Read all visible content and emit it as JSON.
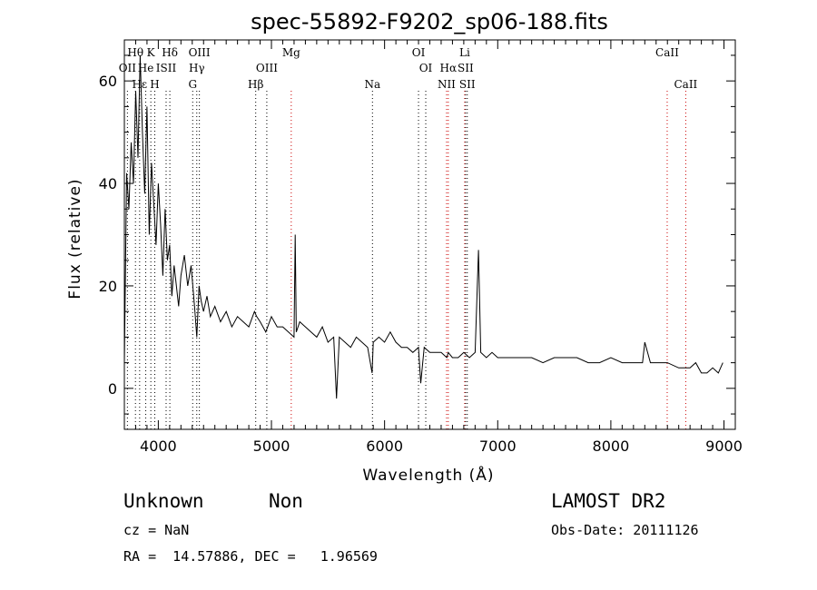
{
  "chart_data": {
    "type": "line",
    "title": "spec-55892-F9202_sp06-188.fits",
    "xlabel": "Wavelength (Å)",
    "ylabel": "Flux (relative)",
    "xlim": [
      3700,
      9100
    ],
    "ylim": [
      -8,
      68
    ],
    "xticks": [
      4000,
      5000,
      6000,
      7000,
      8000,
      9000
    ],
    "yticks": [
      0,
      20,
      40,
      60
    ],
    "grid": false,
    "series": [
      {
        "x": [
          3700,
          3720,
          3740,
          3760,
          3780,
          3800,
          3820,
          3840,
          3860,
          3880,
          3900,
          3920,
          3940,
          3960,
          3980,
          4000,
          4020,
          4040,
          4060,
          4080,
          4100,
          4120,
          4140,
          4160,
          4180,
          4200,
          4230,
          4260,
          4290,
          4320,
          4340,
          4360,
          4380,
          4400,
          4430,
          4460,
          4500,
          4550,
          4600,
          4650,
          4700,
          4750,
          4800,
          4850,
          4870,
          4900,
          4950,
          5000,
          5050,
          5100,
          5150,
          5200,
          5210,
          5220,
          5250,
          5300,
          5350,
          5400,
          5450,
          5500,
          5550,
          5575,
          5600,
          5650,
          5700,
          5750,
          5800,
          5850,
          5890,
          5900,
          5950,
          6000,
          6050,
          6100,
          6150,
          6200,
          6250,
          6300,
          6320,
          6350,
          6400,
          6450,
          6500,
          6550,
          6563,
          6600,
          6650,
          6700,
          6750,
          6800,
          6830,
          6850,
          6900,
          6950,
          7000,
          7100,
          7200,
          7300,
          7400,
          7500,
          7600,
          7700,
          7800,
          7900,
          8000,
          8100,
          8200,
          8280,
          8300,
          8350,
          8400,
          8500,
          8600,
          8700,
          8750,
          8800,
          8850,
          8900,
          8950,
          8990
        ],
        "values": [
          5,
          42,
          35,
          48,
          40,
          58,
          45,
          65,
          50,
          38,
          55,
          30,
          44,
          36,
          28,
          40,
          32,
          22,
          35,
          25,
          28,
          18,
          24,
          20,
          16,
          22,
          26,
          20,
          24,
          16,
          10,
          20,
          17,
          15,
          18,
          14,
          16,
          13,
          15,
          12,
          14,
          13,
          12,
          15,
          14,
          13,
          11,
          14,
          12,
          12,
          11,
          10,
          30,
          11,
          13,
          12,
          11,
          10,
          12,
          9,
          10,
          -2,
          10,
          9,
          8,
          10,
          9,
          8,
          3,
          9,
          10,
          9,
          11,
          9,
          8,
          8,
          7,
          8,
          1,
          8,
          7,
          7,
          7,
          6,
          7,
          6,
          6,
          7,
          6,
          7,
          27,
          7,
          6,
          7,
          6,
          6,
          6,
          6,
          5,
          6,
          6,
          6,
          5,
          5,
          6,
          5,
          5,
          5,
          9,
          5,
          5,
          5,
          4,
          4,
          5,
          3,
          3,
          4,
          3,
          5
        ]
      }
    ],
    "line_markers": [
      {
        "label": "Hθ",
        "x": 3798,
        "row": 1,
        "color": "#000000"
      },
      {
        "label": "K",
        "x": 3934,
        "row": 1,
        "color": "#000000"
      },
      {
        "label": "Hδ",
        "x": 4102,
        "row": 1,
        "color": "#000000"
      },
      {
        "label": "OIII",
        "x": 4363,
        "row": 1,
        "color": "#000000"
      },
      {
        "label": "Mg",
        "x": 5175,
        "row": 1,
        "color": "#cc0000"
      },
      {
        "label": "OI",
        "x": 6300,
        "row": 1,
        "color": "#000000"
      },
      {
        "label": "Li",
        "x": 6708,
        "row": 1,
        "color": "#cc0000"
      },
      {
        "label": "CaII",
        "x": 8498,
        "row": 1,
        "color": "#cc0000"
      },
      {
        "label": "OII",
        "x": 3727,
        "row": 2,
        "color": "#000000"
      },
      {
        "label": "He",
        "x": 3889,
        "row": 2,
        "color": "#000000"
      },
      {
        "label": "ISII",
        "x": 4069,
        "row": 2,
        "color": "#000000"
      },
      {
        "label": "Hγ",
        "x": 4340,
        "row": 2,
        "color": "#000000"
      },
      {
        "label": "OIII",
        "x": 4959,
        "row": 2,
        "color": "#000000"
      },
      {
        "label": "OI",
        "x": 6364,
        "row": 2,
        "color": "#000000"
      },
      {
        "label": "Hα",
        "x": 6563,
        "row": 2,
        "color": "#cc0000"
      },
      {
        "label": "SII",
        "x": 6716,
        "row": 2,
        "color": "#000000"
      },
      {
        "label": "Hε",
        "x": 3835,
        "row": 3,
        "color": "#000000"
      },
      {
        "label": "H",
        "x": 3969,
        "row": 3,
        "color": "#000000"
      },
      {
        "label": "G",
        "x": 4304,
        "row": 3,
        "color": "#000000"
      },
      {
        "label": "Hβ",
        "x": 4861,
        "row": 3,
        "color": "#000000"
      },
      {
        "label": "Na",
        "x": 5893,
        "row": 3,
        "color": "#000000"
      },
      {
        "label": "NII",
        "x": 6548,
        "row": 3,
        "color": "#cc0000"
      },
      {
        "label": "SII",
        "x": 6731,
        "row": 3,
        "color": "#000000"
      },
      {
        "label": "CaII",
        "x": 8662,
        "row": 3,
        "color": "#cc0000"
      }
    ]
  },
  "info": {
    "classification": "Unknown",
    "subclass": "Non",
    "survey": "LAMOST DR2",
    "cz": "cz = NaN",
    "obs_date": "Obs-Date: 20111126",
    "coords": "RA =  14.57886, DEC =   1.96569"
  }
}
